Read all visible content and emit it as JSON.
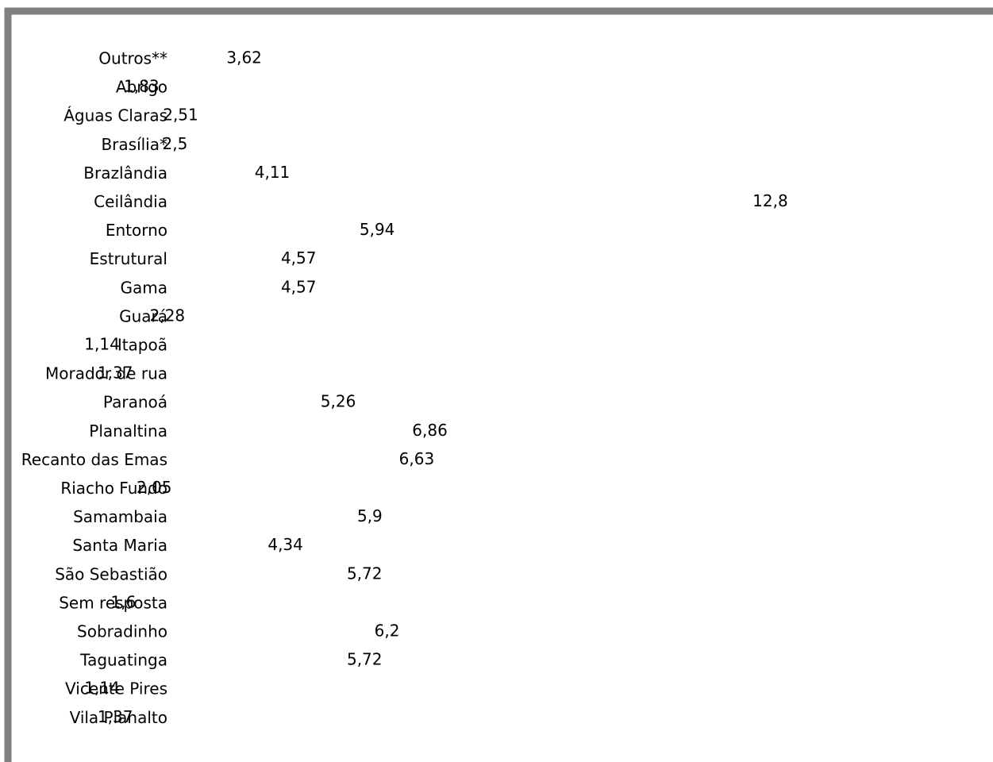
{
  "colors": {
    "frame_border": "#808080",
    "background": "#ffffff",
    "text": "#000000"
  },
  "chart_data": {
    "type": "bar",
    "orientation": "horizontal",
    "bars_visible": false,
    "title": "",
    "xlabel": "",
    "ylabel": "",
    "grid": false,
    "legend": "none",
    "xlim": [
      0,
      12.8
    ],
    "categories": [
      "Outros**",
      "Abrigo",
      "Águas Claras",
      "Brasília*",
      "Brazlândia",
      "Ceilândia",
      "Entorno",
      "Estrutural",
      "Gama",
      "Guará",
      "Itapoã",
      "Morador de rua",
      "Paranoá",
      "Planaltina",
      "Recanto das Emas",
      "Riacho Fundo",
      "Samambaia",
      "Santa Maria",
      "São Sebastião",
      "Sem resposta",
      "Sobradinho",
      "Taguatinga",
      "Vicente Pires",
      "Vila Planalto"
    ],
    "values": [
      3.62,
      1.83,
      2.51,
      2.5,
      4.11,
      12.8,
      5.94,
      4.57,
      4.57,
      2.28,
      1.14,
      1.37,
      5.26,
      6.86,
      6.63,
      2.05,
      5.9,
      4.34,
      5.72,
      1.6,
      6.2,
      5.72,
      1.14,
      1.37
    ],
    "data_labels": [
      "3,62",
      "1,83",
      "2,51",
      "2,5",
      "4,11",
      "12,8",
      "5,94",
      "4,57",
      "4,57",
      "2,28",
      "1,14",
      "1,37",
      "5,26",
      "6,86",
      "6,63",
      "2,05",
      "5,9",
      "4,34",
      "5,72",
      "1,6",
      "6,2",
      "5,72",
      "1,14",
      "1,37"
    ]
  }
}
